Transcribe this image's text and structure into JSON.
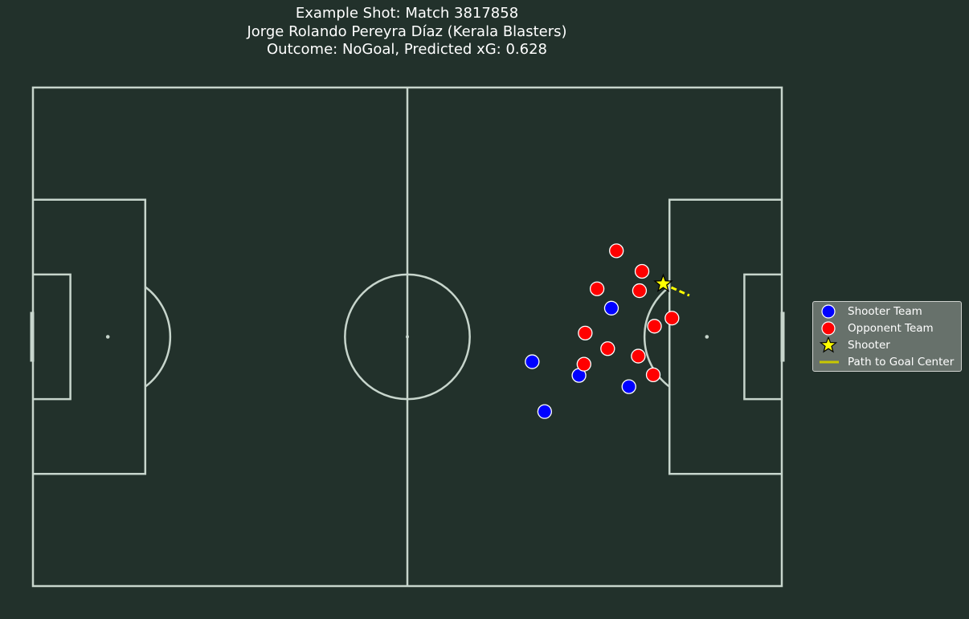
{
  "title": {
    "line1": "Example Shot: Match 3817858",
    "line2": "Jorge Rolando Pereyra Díaz (Kerala Blasters)",
    "line3": "Outcome: NoGoal, Predicted xG: 0.628"
  },
  "colors": {
    "background": "#22312b",
    "pitch_lines": "#c7d5cc",
    "shooter_team": "#0000ff",
    "opponent_team": "#ff0000",
    "shooter": "#ffff00",
    "path": "#ffff00"
  },
  "legend": {
    "items": [
      {
        "label": "Shooter Team",
        "marker": "blue-circle"
      },
      {
        "label": "Opponent Team",
        "marker": "red-circle"
      },
      {
        "label": "Shooter",
        "marker": "yellow-star"
      },
      {
        "label": "Path to Goal Center",
        "marker": "yellow-line"
      }
    ]
  },
  "chart_data": {
    "type": "scatter",
    "pitch": {
      "length": 120,
      "width": 80
    },
    "shooter": {
      "x": 101.0,
      "y": 31.5
    },
    "goal_center": {
      "x": 120,
      "y": 40
    },
    "shooter_team": [
      [
        80.0,
        44.0
      ],
      [
        82.0,
        52.0
      ],
      [
        87.5,
        46.2
      ],
      [
        92.7,
        35.4
      ],
      [
        95.5,
        48.0
      ]
    ],
    "opponent_team": [
      [
        93.5,
        26.2
      ],
      [
        97.6,
        29.5
      ],
      [
        90.4,
        32.3
      ],
      [
        97.2,
        32.6
      ],
      [
        102.4,
        37.0
      ],
      [
        88.5,
        39.4
      ],
      [
        99.6,
        38.3
      ],
      [
        92.1,
        41.9
      ],
      [
        97.0,
        43.1
      ],
      [
        88.3,
        44.4
      ],
      [
        99.4,
        46.1
      ]
    ]
  }
}
